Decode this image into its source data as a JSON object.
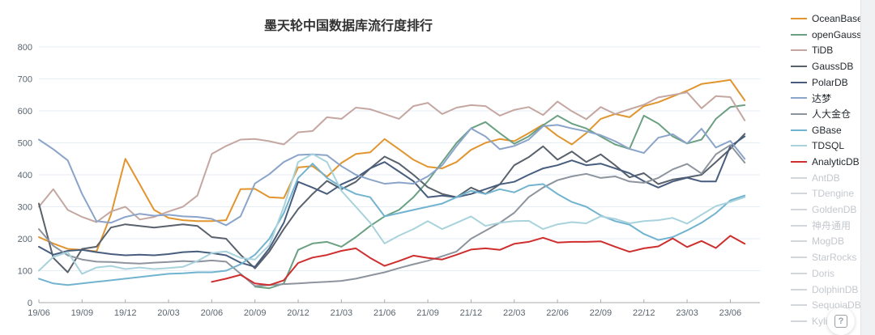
{
  "page": {
    "background": "#ffffff"
  },
  "title": {
    "text": "墨天轮中国数据库流行度排行"
  },
  "help_button": {
    "glyph": "?"
  },
  "chart_data": {
    "type": "line",
    "title": "墨天轮中国数据库流行度排行",
    "xlabel": "",
    "ylabel": "",
    "ylim": [
      0,
      800
    ],
    "ytick_step": 100,
    "grid": true,
    "legend_position": "right",
    "x_start_month": "19/06",
    "x_end_month": "23/07",
    "n_points": 50,
    "x_tick_every_n_points": 3,
    "x_tick_labels": [
      "19/06",
      "19/09",
      "19/12",
      "20/03",
      "20/06",
      "20/09",
      "20/12",
      "21/03",
      "21/06",
      "21/09",
      "21/12",
      "22/03",
      "22/06",
      "22/09",
      "22/12",
      "23/03",
      "23/06"
    ],
    "colors": {
      "grid": "#e6eef5",
      "axis": "#aaaaaa",
      "tick_text": "#5a6570",
      "dimmed_swatch": "#d3d6da"
    },
    "series": [
      {
        "name": "OceanBase",
        "color": "#e1952e",
        "dimmed": false,
        "values": [
          205,
          185,
          168,
          165,
          160,
          275,
          450,
          370,
          290,
          265,
          258,
          255,
          255,
          258,
          355,
          356,
          330,
          327,
          423,
          427,
          394,
          437,
          465,
          470,
          512,
          480,
          447,
          425,
          420,
          440,
          478,
          500,
          512,
          505,
          530,
          557,
          522,
          495,
          530,
          575,
          590,
          580,
          615,
          627,
          645,
          663,
          684,
          690,
          697,
          633
        ]
      },
      {
        "name": "openGauss",
        "color": "#6ba083",
        "dimmed": false,
        "values": [
          null,
          null,
          null,
          null,
          null,
          null,
          null,
          null,
          null,
          null,
          null,
          null,
          null,
          null,
          null,
          50,
          45,
          60,
          165,
          185,
          190,
          175,
          205,
          240,
          270,
          290,
          330,
          380,
          440,
          500,
          545,
          565,
          530,
          497,
          520,
          555,
          585,
          560,
          545,
          520,
          495,
          481,
          585,
          560,
          520,
          498,
          510,
          575,
          612,
          618
        ]
      },
      {
        "name": "TiDB",
        "color": "#c5a7a1",
        "dimmed": false,
        "values": [
          300,
          355,
          290,
          268,
          252,
          285,
          300,
          260,
          268,
          285,
          300,
          335,
          465,
          490,
          510,
          512,
          505,
          495,
          533,
          537,
          580,
          575,
          610,
          605,
          590,
          575,
          615,
          625,
          590,
          610,
          618,
          615,
          585,
          603,
          612,
          587,
          629,
          599,
          574,
          612,
          590,
          605,
          619,
          642,
          650,
          658,
          608,
          646,
          643,
          570
        ]
      },
      {
        "name": "GaussDB",
        "color": "#59616c",
        "dimmed": false,
        "values": [
          310,
          140,
          95,
          168,
          175,
          235,
          245,
          240,
          235,
          240,
          245,
          240,
          205,
          200,
          150,
          107,
          160,
          230,
          293,
          340,
          381,
          355,
          378,
          420,
          457,
          435,
          400,
          361,
          340,
          330,
          360,
          340,
          370,
          430,
          455,
          489,
          447,
          473,
          440,
          464,
          430,
          392,
          405,
          371,
          385,
          392,
          400,
          440,
          481,
          528
        ]
      },
      {
        "name": "PolarDB",
        "color": "#485d7d",
        "dimmed": false,
        "values": [
          175,
          150,
          162,
          165,
          158,
          152,
          148,
          150,
          148,
          152,
          158,
          160,
          155,
          148,
          125,
          112,
          170,
          250,
          378,
          360,
          340,
          370,
          390,
          420,
          440,
          410,
          380,
          330,
          335,
          330,
          340,
          355,
          370,
          378,
          400,
          420,
          430,
          445,
          430,
          435,
          420,
          405,
          380,
          360,
          379,
          391,
          379,
          379,
          489,
          520
        ]
      },
      {
        "name": "达梦",
        "color": "#8ba4c9",
        "dimmed": false,
        "values": [
          510,
          480,
          445,
          340,
          255,
          250,
          268,
          278,
          272,
          275,
          270,
          268,
          262,
          242,
          270,
          373,
          402,
          440,
          462,
          464,
          461,
          427,
          400,
          385,
          372,
          376,
          372,
          395,
          430,
          490,
          545,
          520,
          480,
          490,
          510,
          552,
          556,
          545,
          536,
          524,
          505,
          481,
          468,
          516,
          527,
          498,
          544,
          485,
          506,
          450
        ]
      },
      {
        "name": "人大金仓",
        "color": "#8d949d",
        "dimmed": false,
        "values": [
          230,
          178,
          148,
          135,
          128,
          127,
          124,
          122,
          125,
          127,
          130,
          128,
          132,
          128,
          90,
          52,
          55,
          58,
          60,
          63,
          65,
          68,
          75,
          85,
          95,
          108,
          120,
          131,
          145,
          160,
          200,
          225,
          250,
          281,
          330,
          360,
          383,
          395,
          403,
          390,
          395,
          379,
          375,
          390,
          417,
          434,
          404,
          464,
          493,
          438
        ]
      },
      {
        "name": "GBase",
        "color": "#72b3cf",
        "dimmed": false,
        "values": [
          75,
          60,
          55,
          60,
          65,
          70,
          75,
          80,
          85,
          90,
          92,
          95,
          95,
          100,
          120,
          150,
          200,
          280,
          390,
          435,
          390,
          362,
          340,
          330,
          270,
          280,
          290,
          300,
          310,
          330,
          350,
          340,
          355,
          345,
          366,
          371,
          340,
          315,
          300,
          273,
          255,
          244,
          215,
          196,
          205,
          226,
          250,
          280,
          320,
          335
        ]
      },
      {
        "name": "TDSQL",
        "color": "#a8d3dc",
        "dimmed": false,
        "values": [
          100,
          143,
          158,
          90,
          110,
          115,
          105,
          110,
          105,
          108,
          112,
          130,
          155,
          160,
          140,
          135,
          180,
          300,
          440,
          465,
          440,
          350,
          300,
          250,
          185,
          210,
          230,
          255,
          230,
          250,
          270,
          240,
          250,
          255,
          256,
          230,
          245,
          252,
          248,
          270,
          262,
          248,
          255,
          258,
          265,
          247,
          275,
          302,
          315,
          330
        ]
      },
      {
        "name": "AnalyticDB",
        "color": "#cf2e2e",
        "dimmed": false,
        "values": [
          null,
          null,
          null,
          null,
          null,
          null,
          null,
          null,
          null,
          null,
          null,
          null,
          65,
          75,
          87,
          60,
          55,
          70,
          124,
          141,
          149,
          162,
          170,
          140,
          115,
          130,
          147,
          140,
          135,
          150,
          166,
          170,
          165,
          184,
          190,
          203,
          188,
          190,
          190,
          192,
          175,
          159,
          170,
          176,
          201,
          174,
          193,
          171,
          209,
          184
        ]
      },
      {
        "name": "AntDB",
        "color": "#d3d6da",
        "dimmed": true,
        "values": []
      },
      {
        "name": "TDengine",
        "color": "#d3d6da",
        "dimmed": true,
        "values": []
      },
      {
        "name": "GoldenDB",
        "color": "#d3d6da",
        "dimmed": true,
        "values": []
      },
      {
        "name": "神舟通用",
        "color": "#d3d6da",
        "dimmed": true,
        "values": []
      },
      {
        "name": "MogDB",
        "color": "#d3d6da",
        "dimmed": true,
        "values": []
      },
      {
        "name": "StarRocks",
        "color": "#d3d6da",
        "dimmed": true,
        "values": []
      },
      {
        "name": "Doris",
        "color": "#d3d6da",
        "dimmed": true,
        "values": []
      },
      {
        "name": "DolphinDB",
        "color": "#d3d6da",
        "dimmed": true,
        "values": []
      },
      {
        "name": "SequoiaDB",
        "color": "#d3d6da",
        "dimmed": true,
        "values": []
      },
      {
        "name": "Kyligence",
        "color": "#d3d6da",
        "dimmed": true,
        "values": []
      }
    ]
  }
}
